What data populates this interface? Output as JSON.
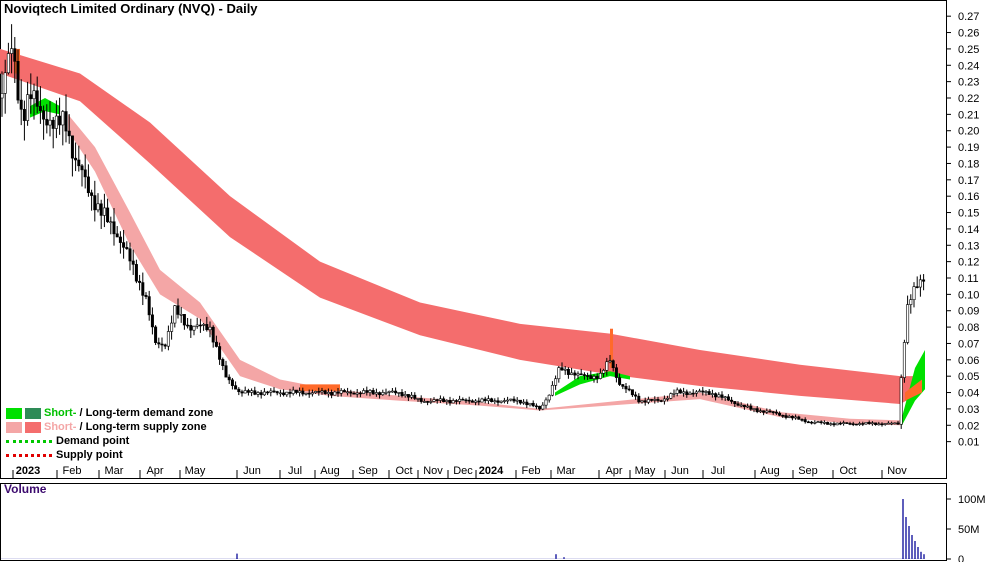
{
  "title": "Noviqtech Limited Ordinary (NVQ) - Daily",
  "volume_label": "Volume",
  "legend": {
    "short": "Short-",
    "sep": " / ",
    "demand_rest": "Long-term demand zone",
    "supply_rest": "Long-term supply zone",
    "demand_point": "Demand point",
    "supply_point": "Supply point"
  },
  "colors": {
    "short_demand": "#00e000",
    "long_demand": "#2e8b57",
    "short_supply": "#f4a6a6",
    "long_supply": "#f46d6d",
    "demand_point": "#00c800",
    "supply_point": "#e00000",
    "volume": "#1a1aa0",
    "text_purple": "#3c0a6e"
  },
  "chart_data": [
    {
      "type": "ohlc",
      "title": "Noviqtech Limited Ordinary (NVQ) - Daily",
      "x_tick_labels": [
        "2023",
        "Feb",
        "Mar",
        "Apr",
        "May",
        "Jun",
        "Jul",
        "Aug",
        "Sep",
        "Oct",
        "Nov",
        "Dec",
        "2024",
        "Feb",
        "Mar",
        "Apr",
        "May",
        "Jun",
        "Jul",
        "Aug",
        "Sep",
        "Oct",
        "Nov"
      ],
      "y_ticks": [
        "0.01",
        "0.02",
        "0.03",
        "0.04",
        "0.05",
        "0.06",
        "0.07",
        "0.08",
        "0.09",
        "0.10",
        "0.11",
        "0.12",
        "0.13",
        "0.14",
        "0.15",
        "0.16",
        "0.17",
        "0.18",
        "0.19",
        "0.20",
        "0.21",
        "0.22",
        "0.23",
        "0.24",
        "0.25",
        "0.26",
        "0.27"
      ],
      "ylim": [
        0.0,
        0.275
      ],
      "price_path": [
        [
          0,
          0.22
        ],
        [
          12,
          0.25
        ],
        [
          22,
          0.21
        ],
        [
          30,
          0.22
        ],
        [
          45,
          0.21
        ],
        [
          55,
          0.2
        ],
        [
          65,
          0.21
        ],
        [
          75,
          0.18
        ],
        [
          85,
          0.17
        ],
        [
          100,
          0.15
        ],
        [
          115,
          0.14
        ],
        [
          130,
          0.12
        ],
        [
          145,
          0.1
        ],
        [
          155,
          0.07
        ],
        [
          165,
          0.07
        ],
        [
          175,
          0.09
        ],
        [
          190,
          0.08
        ],
        [
          210,
          0.08
        ],
        [
          225,
          0.05
        ],
        [
          240,
          0.04
        ],
        [
          260,
          0.04
        ],
        [
          280,
          0.04
        ],
        [
          300,
          0.04
        ],
        [
          320,
          0.04
        ],
        [
          340,
          0.04
        ],
        [
          360,
          0.04
        ],
        [
          380,
          0.04
        ],
        [
          400,
          0.04
        ],
        [
          420,
          0.035
        ],
        [
          440,
          0.035
        ],
        [
          460,
          0.035
        ],
        [
          480,
          0.035
        ],
        [
          500,
          0.035
        ],
        [
          520,
          0.035
        ],
        [
          540,
          0.03
        ],
        [
          550,
          0.04
        ],
        [
          560,
          0.055
        ],
        [
          580,
          0.05
        ],
        [
          600,
          0.05
        ],
        [
          610,
          0.06
        ],
        [
          620,
          0.045
        ],
        [
          640,
          0.035
        ],
        [
          660,
          0.035
        ],
        [
          675,
          0.04
        ],
        [
          690,
          0.04
        ],
        [
          710,
          0.04
        ],
        [
          730,
          0.035
        ],
        [
          750,
          0.03
        ],
        [
          770,
          0.028
        ],
        [
          790,
          0.025
        ],
        [
          810,
          0.022
        ],
        [
          830,
          0.021
        ],
        [
          850,
          0.021
        ],
        [
          870,
          0.021
        ],
        [
          890,
          0.021
        ],
        [
          898,
          0.021
        ],
        [
          903,
          0.065
        ],
        [
          908,
          0.095
        ],
        [
          913,
          0.1
        ],
        [
          918,
          0.105
        ],
        [
          923,
          0.11
        ]
      ],
      "zones": [
        {
          "name": "Long-term supply zone",
          "upper": [
            [
              0,
              0.25
            ],
            [
              80,
              0.235
            ],
            [
              150,
              0.205
            ],
            [
              230,
              0.16
            ],
            [
              320,
              0.12
            ],
            [
              420,
              0.095
            ],
            [
              520,
              0.082
            ],
            [
              610,
              0.076
            ],
            [
              700,
              0.066
            ],
            [
              800,
              0.057
            ],
            [
              900,
              0.05
            ],
            [
              922,
              0.05
            ]
          ],
          "lower": [
            [
              0,
              0.235
            ],
            [
              80,
              0.218
            ],
            [
              150,
              0.18
            ],
            [
              230,
              0.135
            ],
            [
              320,
              0.098
            ],
            [
              420,
              0.075
            ],
            [
              520,
              0.06
            ],
            [
              610,
              0.051
            ],
            [
              700,
              0.044
            ],
            [
              800,
              0.038
            ],
            [
              900,
              0.033
            ],
            [
              922,
              0.04
            ]
          ]
        },
        {
          "name": "Short-term supply zone",
          "upper": [
            [
              68,
              0.21
            ],
            [
              95,
              0.19
            ],
            [
              130,
              0.15
            ],
            [
              160,
              0.115
            ],
            [
              200,
              0.095
            ],
            [
              240,
              0.06
            ],
            [
              280,
              0.048
            ],
            [
              330,
              0.042
            ],
            [
              400,
              0.038
            ],
            [
              480,
              0.034
            ],
            [
              540,
              0.03
            ],
            [
              700,
              0.04
            ],
            [
              780,
              0.028
            ],
            [
              850,
              0.024
            ],
            [
              900,
              0.023
            ]
          ],
          "lower": [
            [
              68,
              0.2
            ],
            [
              95,
              0.175
            ],
            [
              130,
              0.13
            ],
            [
              160,
              0.1
            ],
            [
              200,
              0.085
            ],
            [
              240,
              0.05
            ],
            [
              280,
              0.042
            ],
            [
              330,
              0.038
            ],
            [
              400,
              0.035
            ],
            [
              480,
              0.032
            ],
            [
              540,
              0.029
            ],
            [
              700,
              0.036
            ],
            [
              780,
              0.025
            ],
            [
              850,
              0.021
            ],
            [
              900,
              0.02
            ]
          ]
        },
        {
          "name": "Short-term demand zone",
          "upper": [
            [
              30,
              0.215
            ],
            [
              45,
              0.22
            ],
            [
              60,
              0.215
            ]
          ],
          "lower": [
            [
              30,
              0.208
            ],
            [
              45,
              0.212
            ],
            [
              60,
              0.21
            ]
          ]
        },
        {
          "name": "Short-term demand zone",
          "upper": [
            [
              555,
              0.04
            ],
            [
              580,
              0.05
            ],
            [
              610,
              0.053
            ],
            [
              630,
              0.05
            ]
          ],
          "lower": [
            [
              555,
              0.038
            ],
            [
              580,
              0.045
            ],
            [
              610,
              0.05
            ],
            [
              630,
              0.048
            ]
          ]
        },
        {
          "name": "Short-term demand zone",
          "upper": [
            [
              902,
              0.025
            ],
            [
              915,
              0.055
            ],
            [
              925,
              0.066
            ]
          ],
          "lower": [
            [
              902,
              0.02
            ],
            [
              915,
              0.035
            ],
            [
              925,
              0.042
            ]
          ]
        }
      ]
    },
    {
      "type": "bar",
      "title": "Volume",
      "y_ticks": [
        "0",
        "50M",
        "100M"
      ],
      "ylim": [
        0,
        110
      ],
      "unit": "M",
      "spikes": [
        {
          "x_index": 237,
          "value": 9
        },
        {
          "x_index": 556,
          "value": 8
        },
        {
          "x_index": 564,
          "value": 3
        },
        {
          "x_index": 903,
          "value": 100
        },
        {
          "x_index": 906,
          "value": 70
        },
        {
          "x_index": 909,
          "value": 55
        },
        {
          "x_index": 912,
          "value": 40
        },
        {
          "x_index": 915,
          "value": 30
        },
        {
          "x_index": 918,
          "value": 20
        },
        {
          "x_index": 921,
          "value": 12
        },
        {
          "x_index": 924,
          "value": 8
        }
      ]
    }
  ]
}
